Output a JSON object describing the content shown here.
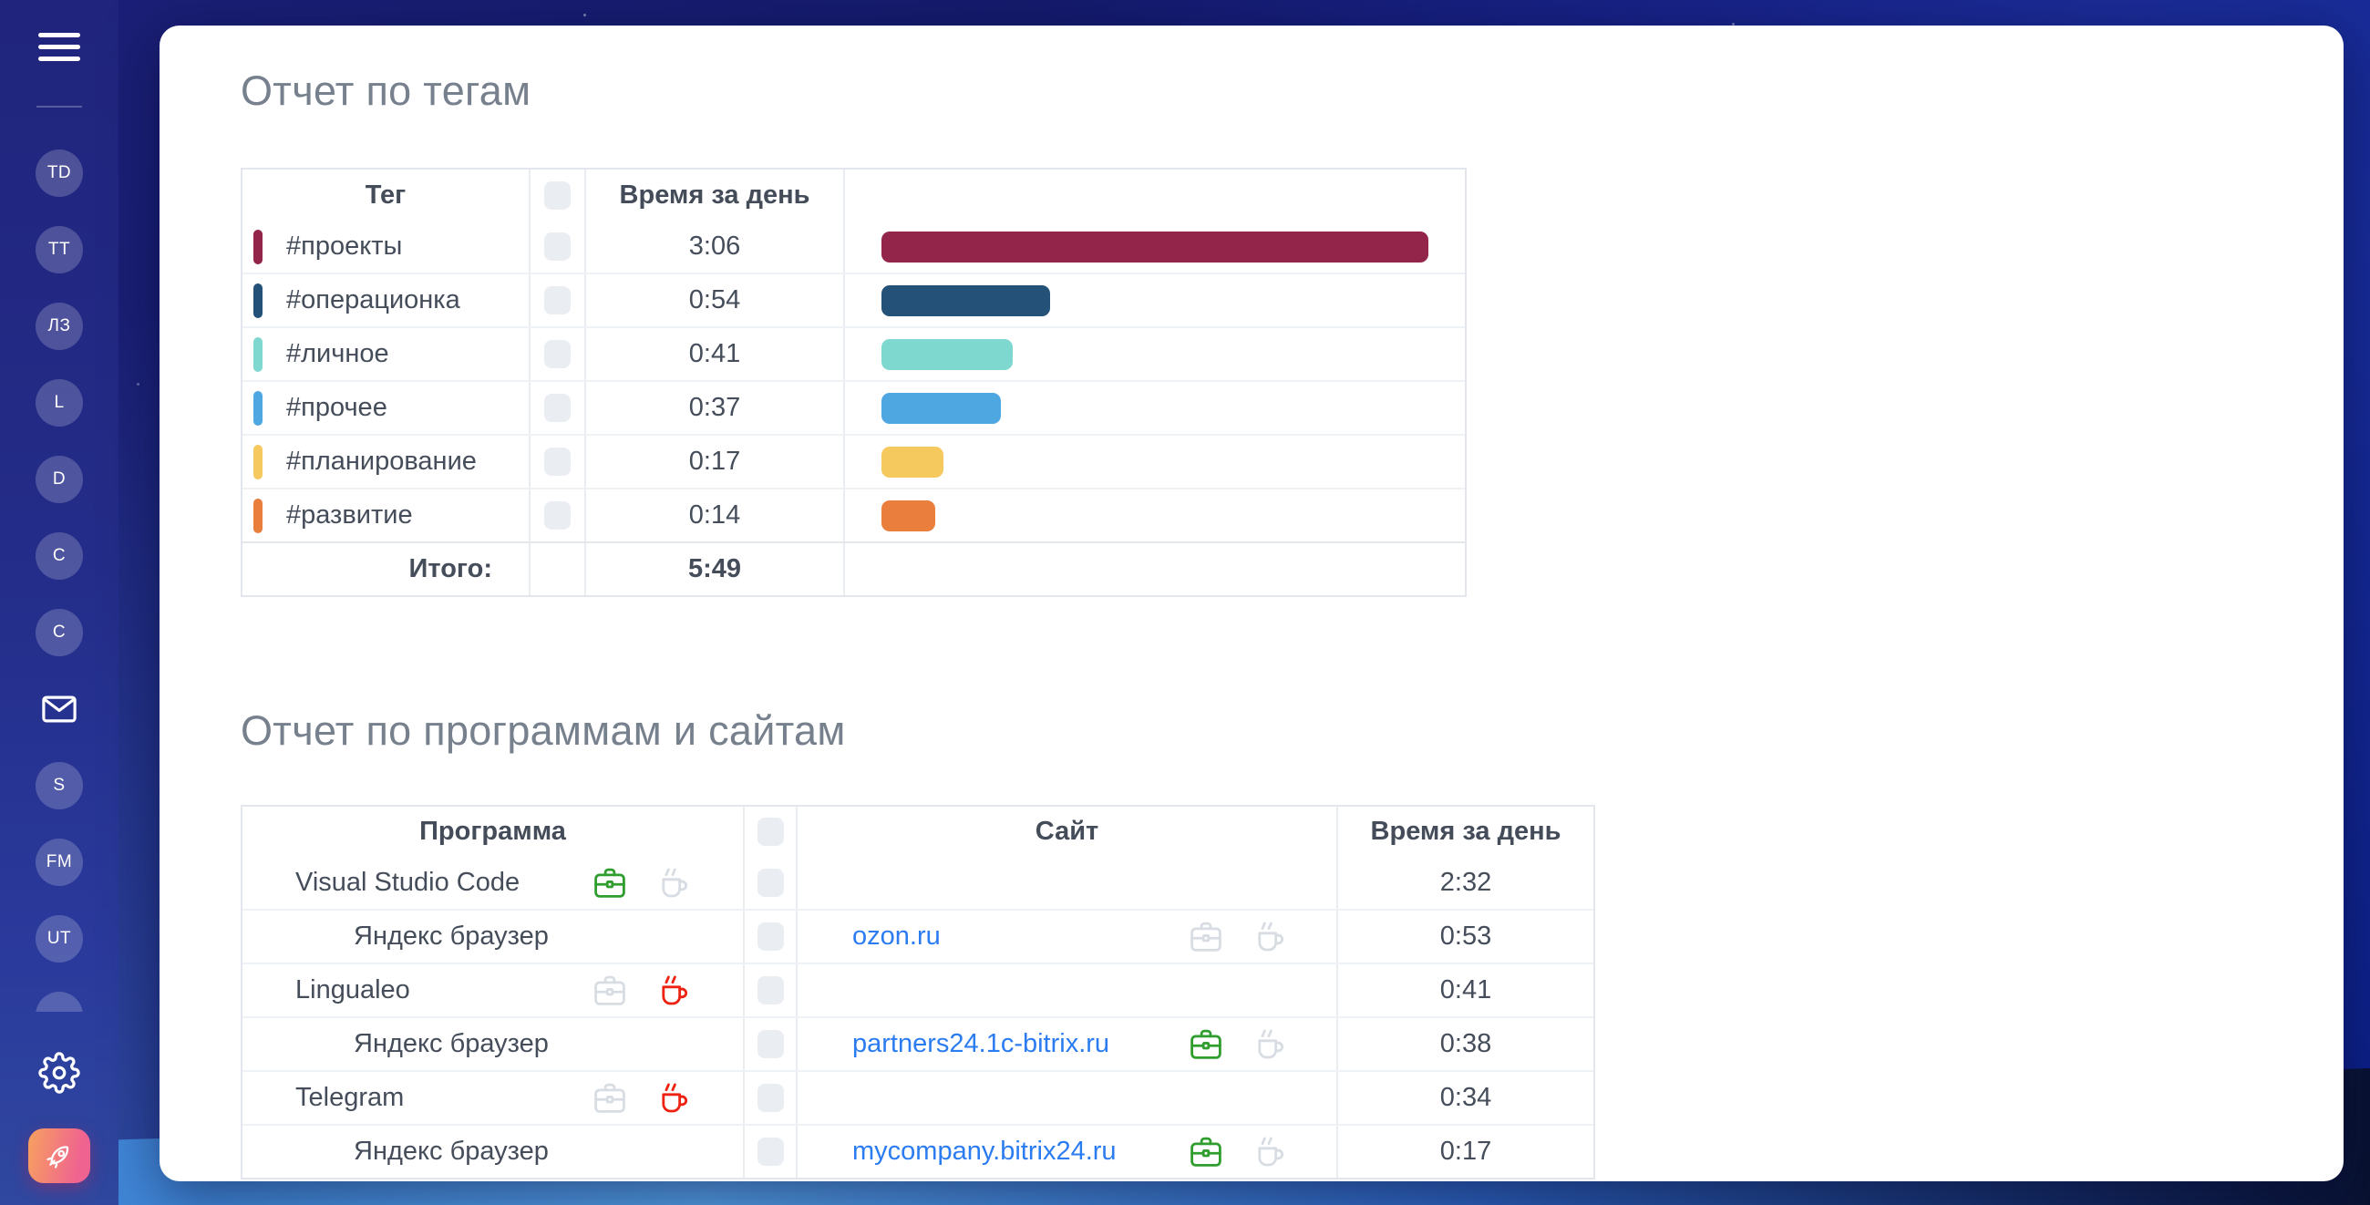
{
  "colors": {
    "work": "#2f9e2f",
    "rest": "#ee2213",
    "neutral": "#d8dde3",
    "link": "#2b7cf1",
    "rocket_gradient_start": "#f7a15f",
    "rocket_gradient_end": "#ef6390"
  },
  "sidebar": {
    "items": [
      {
        "kind": "avatar",
        "label": "TD"
      },
      {
        "kind": "avatar",
        "label": "TT"
      },
      {
        "kind": "avatar",
        "label": "ЛЗ"
      },
      {
        "kind": "avatar",
        "label": "L"
      },
      {
        "kind": "avatar",
        "label": "D"
      },
      {
        "kind": "avatar",
        "label": "C"
      },
      {
        "kind": "avatar",
        "label": "C"
      },
      {
        "kind": "mail"
      },
      {
        "kind": "avatar",
        "label": "S"
      },
      {
        "kind": "avatar",
        "label": "FM"
      },
      {
        "kind": "avatar",
        "label": "UT"
      },
      {
        "kind": "avatar",
        "label": ""
      }
    ]
  },
  "tags_report": {
    "title": "Отчет по тегам",
    "columns": {
      "tag": "Тег",
      "time": "Время за день"
    },
    "rows": [
      {
        "tag": "#проекты",
        "time": "3:06",
        "minutes": 186,
        "color": "#93254a"
      },
      {
        "tag": "#операционка",
        "time": "0:54",
        "minutes": 54,
        "color": "#235177"
      },
      {
        "tag": "#личное",
        "time": "0:41",
        "minutes": 41,
        "color": "#7ed8d0"
      },
      {
        "tag": "#прочее",
        "time": "0:37",
        "minutes": 37,
        "color": "#4fa7e2"
      },
      {
        "tag": "#планирование",
        "time": "0:17",
        "minutes": 17,
        "color": "#f6c95f"
      },
      {
        "tag": "#развитие",
        "time": "0:14",
        "minutes": 14,
        "color": "#e97e3d"
      }
    ],
    "total_label": "Итого:",
    "total_time": "5:49"
  },
  "programs_report": {
    "title": "Отчет по программам и сайтам",
    "columns": {
      "program": "Программа",
      "site": "Сайт",
      "time": "Время за день"
    },
    "rows": [
      {
        "program": "Visual Studio Code",
        "indent": false,
        "program_icons": {
          "briefcase": "work",
          "cup": "neutral"
        },
        "site": "",
        "site_icons": null,
        "time": "2:32"
      },
      {
        "program": "Яндекс браузер",
        "indent": true,
        "program_icons": null,
        "site": "ozon.ru",
        "site_icons": {
          "briefcase": "neutral",
          "cup": "neutral"
        },
        "time": "0:53"
      },
      {
        "program": "Lingualeo",
        "indent": false,
        "program_icons": {
          "briefcase": "neutral",
          "cup": "rest"
        },
        "site": "",
        "site_icons": null,
        "time": "0:41"
      },
      {
        "program": "Яндекс браузер",
        "indent": true,
        "program_icons": null,
        "site": "partners24.1c-bitrix.ru",
        "site_icons": {
          "briefcase": "work",
          "cup": "neutral"
        },
        "time": "0:38"
      },
      {
        "program": "Telegram",
        "indent": false,
        "program_icons": {
          "briefcase": "neutral",
          "cup": "rest"
        },
        "site": "",
        "site_icons": null,
        "time": "0:34"
      },
      {
        "program": "Яндекс браузер",
        "indent": true,
        "program_icons": null,
        "site": "mycompany.bitrix24.ru",
        "site_icons": {
          "briefcase": "work",
          "cup": "neutral"
        },
        "time": "0:17"
      }
    ]
  }
}
